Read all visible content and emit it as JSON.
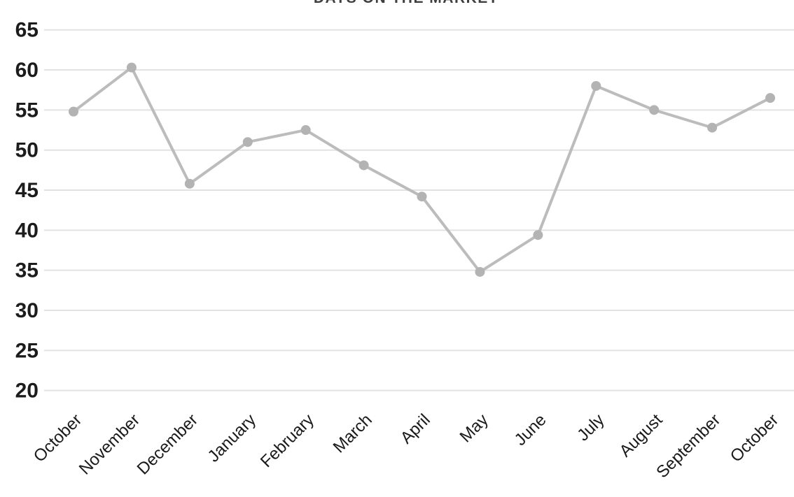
{
  "chart_data": {
    "type": "line",
    "title": "DAYS ON THE MARKET",
    "categories": [
      "October",
      "November",
      "December",
      "January",
      "February",
      "March",
      "April",
      "May",
      "June",
      "July",
      "August",
      "September",
      "October"
    ],
    "values": [
      54.8,
      60.3,
      45.8,
      51.0,
      52.5,
      48.1,
      44.2,
      34.8,
      39.4,
      58.0,
      55.0,
      52.8,
      56.5
    ],
    "yticks": [
      65,
      60,
      55,
      50,
      45,
      40,
      35,
      30,
      25,
      20
    ],
    "ylim": [
      20,
      65
    ],
    "xlabel": "",
    "ylabel": "",
    "grid": true,
    "legend": "none",
    "colors": {
      "line": "#bcbcbc",
      "marker": "#b3b3b3",
      "grid": "#e2e2e2",
      "y_tick_label": "#1c1c1c",
      "x_tick_label": "#1a1a1a",
      "title": "#3f3f3f"
    }
  }
}
